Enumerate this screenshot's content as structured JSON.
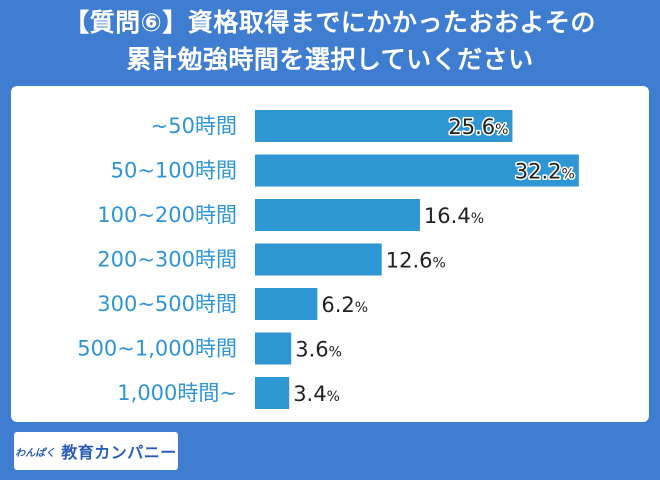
{
  "colors": {
    "background": "#3f7dd0",
    "bar": "#2e96d3",
    "label": "#2f95d6",
    "panel": "#ffffff"
  },
  "title": {
    "line1": "【質問⑥】資格取得までにかかったおおよその",
    "line2": "累計勉強時間を選択していください"
  },
  "logo": {
    "small": "わんぱく",
    "main": "教育カンパニー"
  },
  "chart_data": {
    "type": "bar",
    "orientation": "horizontal",
    "title": "【質問⑥】資格取得までにかかったおおよその累計勉強時間を選択していください",
    "categories": [
      "~50時間",
      "50~100時間",
      "100~200時間",
      "200~300時間",
      "300~500時間",
      "500~1,000時間",
      "1,000時間~"
    ],
    "values": [
      25.6,
      32.2,
      16.4,
      12.6,
      6.2,
      3.6,
      3.4
    ],
    "value_suffix": "%",
    "xlim": [
      0,
      35
    ],
    "grid": false
  }
}
